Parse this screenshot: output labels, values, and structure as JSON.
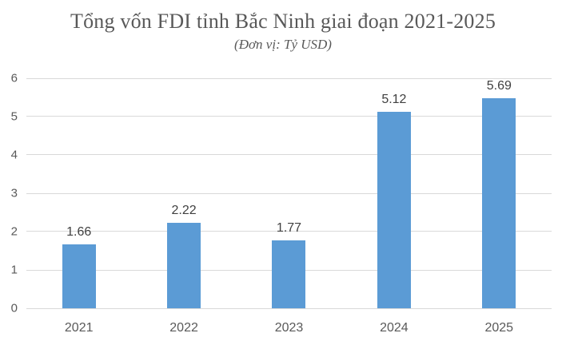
{
  "header": {
    "title": "Tổng vốn FDI tỉnh Bắc Ninh giai đoạn 2021-2025",
    "subtitle": "(Đơn vị: Tỷ USD)"
  },
  "chart_data": {
    "type": "bar",
    "title": "Tổng vốn FDI tỉnh Bắc Ninh giai đoạn 2021-2025",
    "subtitle": "(Đơn vị: Tỷ USD)",
    "unit": "Tỷ USD",
    "categories": [
      "2021",
      "2022",
      "2023",
      "2024",
      "2025"
    ],
    "values": [
      1.66,
      2.22,
      1.77,
      5.12,
      5.69
    ],
    "data_labels": [
      "1.66",
      "2.22",
      "1.77",
      "5.12",
      "5.69"
    ],
    "xlabel": "",
    "ylabel": "",
    "ylim": [
      0,
      6
    ],
    "yticks": [
      0,
      1,
      2,
      3,
      4,
      5,
      6
    ],
    "grid": true,
    "legend": false,
    "colors": {
      "bar": "#5B9BD5",
      "gridline": "#D9D9D9",
      "title_text": "#595959",
      "axis_label_text": "#595959",
      "data_label_text": "#404040",
      "background": "#FFFFFF"
    }
  }
}
